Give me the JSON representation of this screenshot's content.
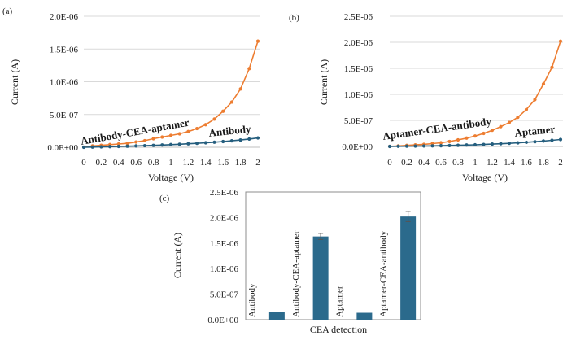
{
  "colors": {
    "orange": "#ed7d31",
    "teal": "#255e7e",
    "bar": "#2b6a8c",
    "grid": "#d9d9d9",
    "text": "#1a1a1a"
  },
  "chart_data": [
    {
      "id": "a",
      "type": "line",
      "panel_label": "(a)",
      "xlabel": "Voltage (V)",
      "ylabel": "Current (A)",
      "xlim": [
        0,
        2
      ],
      "ylim": [
        0,
        2e-06
      ],
      "x_tick_labels": [
        "0",
        "0.2",
        "0.4",
        "0.6",
        "0.8",
        "1",
        "1.2",
        "1.4",
        "1.6",
        "1.8",
        "2"
      ],
      "y_ticks": [
        0,
        5e-07,
        1e-06,
        1.5e-06,
        2e-06
      ],
      "y_tick_labels": [
        "0.0E+00",
        "5.0E-07",
        "1.0E-06",
        "1.5E-06",
        "2.0E-06"
      ],
      "grid": true,
      "x": [
        0,
        0.1,
        0.2,
        0.3,
        0.4,
        0.5,
        0.6,
        0.7,
        0.8,
        0.9,
        1.0,
        1.1,
        1.2,
        1.3,
        1.4,
        1.5,
        1.6,
        1.7,
        1.8,
        1.9,
        2.0
      ],
      "series": [
        {
          "name": "Antibody-CEA-aptamer",
          "color_key": "orange",
          "values": [
            1e-09,
            2e-08,
            3e-08,
            4e-08,
            5e-08,
            6e-08,
            8e-08,
            1e-07,
            1.3e-07,
            1.55e-07,
            1.8e-07,
            2.05e-07,
            2.4e-07,
            2.85e-07,
            3.45e-07,
            4.3e-07,
            5.5e-07,
            6.9e-07,
            8.9e-07,
            1.2e-06,
            1.62e-06
          ]
        },
        {
          "name": "Antibody",
          "color_key": "teal",
          "values": [
            0,
            3e-09,
            6e-09,
            9e-09,
            1.2e-08,
            1.6e-08,
            2e-08,
            2.4e-08,
            2.9e-08,
            3.4e-08,
            4e-08,
            4.6e-08,
            5.3e-08,
            6e-08,
            6.8e-08,
            7.7e-08,
            8.7e-08,
            9.8e-08,
            1.1e-07,
            1.25e-07,
            1.42e-07
          ]
        }
      ],
      "annotations": [
        "Antibody-CEA-aptamer",
        "Antibody"
      ]
    },
    {
      "id": "b",
      "type": "line",
      "panel_label": "(b)",
      "xlabel": "Voltage (V)",
      "ylabel": "Current (A)",
      "xlim": [
        0,
        2
      ],
      "ylim": [
        0,
        2.5e-06
      ],
      "x_tick_labels": [
        "0",
        "0.2",
        "0.4",
        "0.6",
        "0.8",
        "1",
        "1.2",
        "1.4",
        "1.6",
        "1.8",
        "2"
      ],
      "y_ticks": [
        0,
        5e-07,
        1e-06,
        1.5e-06,
        2e-06,
        2.5e-06
      ],
      "y_tick_labels": [
        "0.0E+00",
        "5.0E-07",
        "1.0E-06",
        "1.5E-06",
        "2.0E-06",
        "2.5E-06"
      ],
      "grid": true,
      "x": [
        0,
        0.1,
        0.2,
        0.3,
        0.4,
        0.5,
        0.6,
        0.7,
        0.8,
        0.9,
        1.0,
        1.1,
        1.2,
        1.3,
        1.4,
        1.5,
        1.6,
        1.7,
        1.8,
        1.9,
        2.0
      ],
      "series": [
        {
          "name": "Aptamer-CEA-antibody",
          "color_key": "orange",
          "values": [
            1e-09,
            1e-08,
            2e-08,
            3e-08,
            4e-08,
            5.5e-08,
            7e-08,
            9.5e-08,
            1.25e-07,
            1.6e-07,
            2e-07,
            2.5e-07,
            3.1e-07,
            3.8e-07,
            4.6e-07,
            5.6e-07,
            7.1e-07,
            9e-07,
            1.2e-06,
            1.52e-06,
            2.02e-06
          ]
        },
        {
          "name": "Aptamer",
          "color_key": "teal",
          "values": [
            0,
            3e-09,
            5e-09,
            7e-09,
            9e-09,
            1.1e-08,
            1.4e-08,
            1.8e-08,
            2.2e-08,
            2.7e-08,
            3.2e-08,
            3.8e-08,
            4.5e-08,
            5.2e-08,
            6e-08,
            6.9e-08,
            7.9e-08,
            9e-08,
            1.03e-07,
            1.17e-07,
            1.33e-07
          ]
        }
      ],
      "annotations": [
        "Aptamer-CEA-antibody",
        "Aptamer"
      ]
    },
    {
      "id": "c",
      "type": "bar",
      "panel_label": "(c)",
      "xlabel": "CEA detection",
      "ylabel": "Current (A)",
      "ylim": [
        0,
        2.5e-06
      ],
      "y_ticks": [
        0,
        5e-07,
        1e-06,
        1.5e-06,
        2e-06,
        2.5e-06
      ],
      "y_tick_labels": [
        "0.0E+00",
        "5.0E-07",
        "1.0E-06",
        "1.5E-06",
        "2.0E-06",
        "2.5E-06"
      ],
      "grid": false,
      "categories": [
        "Antibody",
        "Antibody-CEA-aptamer",
        "Aptamer",
        "Aptamer-CEA-antibody"
      ],
      "values": [
        1.5e-07,
        1.63e-06,
        1.35e-07,
        2.02e-06
      ],
      "errors": [
        0,
        6e-08,
        0,
        1e-07
      ],
      "color_key": "bar"
    }
  ]
}
